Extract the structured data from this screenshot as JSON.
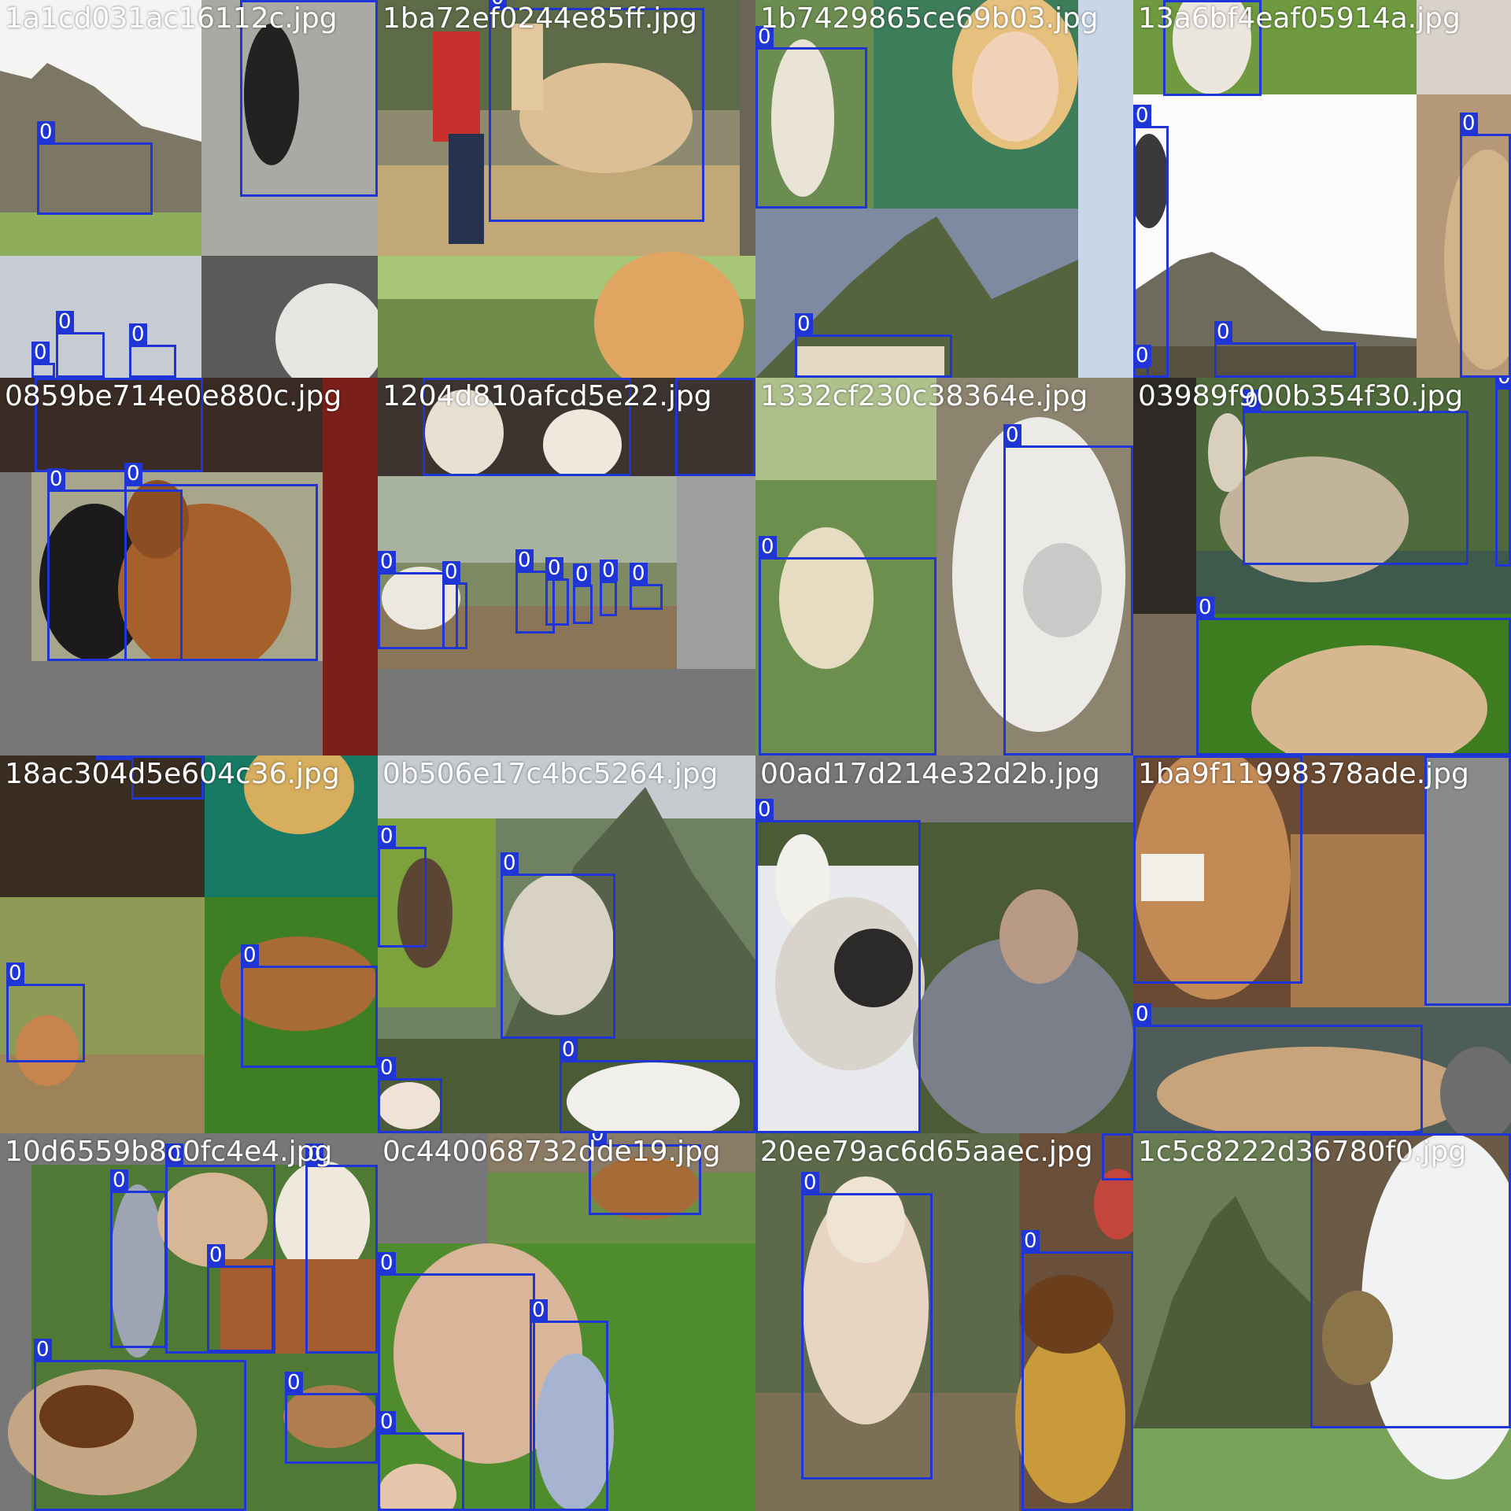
{
  "title": "",
  "colors": {
    "box": "#1f35d6",
    "label_text": "#ffffff",
    "filename_text": "#ffffff",
    "pad_gray": "#777777"
  },
  "tiles": [
    {
      "filename": "1a1cd031ac16112c.jpg",
      "boxes": 6
    },
    {
      "filename": "1ba72ef0244e85ff.jpg",
      "boxes": 1
    },
    {
      "filename": "1b7429865ce69b03.jpg",
      "boxes": 2
    },
    {
      "filename": "13a6bf4eaf05914a.jpg",
      "boxes": 5
    },
    {
      "filename": "0859be714e0e880c.jpg",
      "boxes": 3
    },
    {
      "filename": "1204d810afcd5e22.jpg",
      "boxes": 11
    },
    {
      "filename": "1332cf230c38364e.jpg",
      "boxes": 2
    },
    {
      "filename": "03989f900b354f30.jpg",
      "boxes": 4
    },
    {
      "filename": "18ac304d5e604c36.jpg",
      "boxes": 4
    },
    {
      "filename": "0b506e17c4bc5264.jpg",
      "boxes": 4
    },
    {
      "filename": "00ad17d214e32d2b.jpg",
      "boxes": 1
    },
    {
      "filename": "1ba9f11998378ade.jpg",
      "boxes": 4
    },
    {
      "filename": "10d6559b8c0fc4e4.jpg",
      "boxes": 6
    },
    {
      "filename": "0c440068732dde19.jpg",
      "boxes": 4
    },
    {
      "filename": "20ee79ac6d65aaec.jpg",
      "boxes": 3
    },
    {
      "filename": "1c5c8222d36780f0.jpg",
      "boxes": 1
    }
  ],
  "class_label": "0"
}
